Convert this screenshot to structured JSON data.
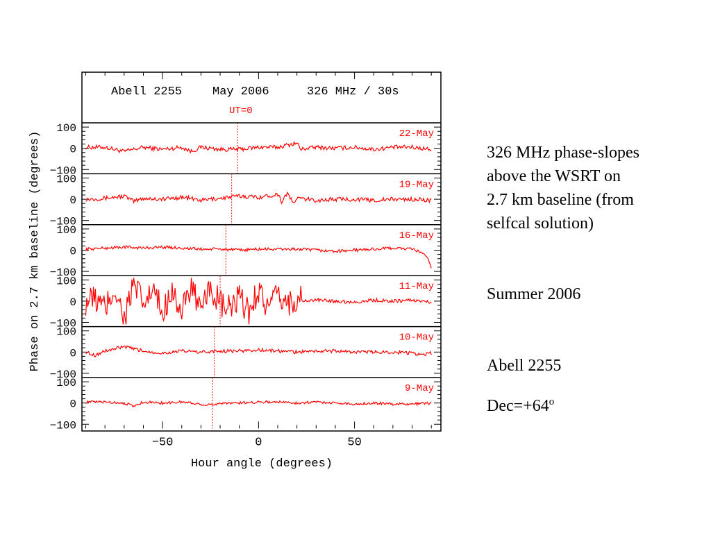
{
  "chart_data": {
    "type": "line",
    "header": {
      "source": "Abell 2255",
      "date": "May 2006",
      "setup": "326 MHz / 30s",
      "ut_label": "UT=0"
    },
    "xlabel": "Hour angle (degrees)",
    "ylabel": "Phase on 2.7 km baseline (degrees)",
    "xlim": [
      -92,
      95
    ],
    "ylim": [
      -120,
      120
    ],
    "x_ticks": [
      -50,
      0,
      50
    ],
    "y_ticks": [
      100,
      0,
      -100
    ],
    "series_color": "#ff0000",
    "panels": [
      {
        "name": "22-May",
        "ut0_hour_angle": -11,
        "amplitude": 10,
        "x": [
          -90,
          -80,
          -70,
          -60,
          -50,
          -40,
          -35,
          -30,
          -20,
          -10,
          0,
          10,
          15,
          20,
          22,
          25,
          30,
          40,
          50,
          60,
          70,
          80,
          90
        ],
        "y": [
          5,
          5,
          -15,
          5,
          -5,
          5,
          -15,
          5,
          -5,
          -5,
          5,
          5,
          15,
          25,
          -5,
          0,
          5,
          0,
          5,
          -5,
          5,
          5,
          -5
        ]
      },
      {
        "name": "19-May",
        "ut0_hour_angle": -14,
        "amplitude": 10,
        "x": [
          -90,
          -80,
          -70,
          -65,
          -60,
          -50,
          -40,
          -30,
          -20,
          -10,
          0,
          5,
          10,
          12,
          15,
          18,
          20,
          30,
          40,
          50,
          60,
          70,
          80,
          90
        ],
        "y": [
          0,
          5,
          15,
          -10,
          5,
          0,
          10,
          -5,
          5,
          15,
          10,
          15,
          25,
          -10,
          30,
          -20,
          5,
          -5,
          0,
          0,
          -5,
          0,
          0,
          -5
        ]
      },
      {
        "name": "16-May",
        "ut0_hour_angle": -17,
        "amplitude": 7,
        "x": [
          -90,
          -80,
          -70,
          -60,
          -50,
          -40,
          -30,
          -20,
          -10,
          0,
          10,
          20,
          30,
          40,
          50,
          60,
          70,
          80,
          85,
          88,
          90
        ],
        "y": [
          5,
          10,
          15,
          10,
          15,
          10,
          5,
          5,
          0,
          5,
          5,
          5,
          0,
          -5,
          0,
          5,
          10,
          5,
          -10,
          -40,
          -80
        ]
      },
      {
        "name": "11-May",
        "ut0_hour_angle": -20,
        "amplitude": 70,
        "x": [
          -90,
          -85,
          -80,
          -75,
          -70,
          -65,
          -60,
          -55,
          -50,
          -45,
          -40,
          -35,
          -30,
          -25,
          -20,
          -15,
          -10,
          -5,
          0,
          5,
          10,
          15,
          20,
          25,
          30,
          40,
          50,
          60,
          70,
          80,
          90
        ],
        "y": [
          0,
          10,
          -40,
          60,
          -80,
          80,
          -20,
          50,
          -60,
          70,
          -70,
          90,
          -70,
          70,
          -20,
          -40,
          10,
          -50,
          60,
          -40,
          20,
          -10,
          10,
          0,
          5,
          0,
          -5,
          5,
          0,
          5,
          -5
        ],
        "noise_range": [
          -90,
          22
        ]
      },
      {
        "name": "10-May",
        "ut0_hour_angle": -23,
        "amplitude": 8,
        "x": [
          -90,
          -85,
          -80,
          -75,
          -70,
          -60,
          -50,
          -40,
          -30,
          -20,
          -10,
          0,
          10,
          20,
          30,
          40,
          50,
          60,
          70,
          80,
          85,
          90
        ],
        "y": [
          0,
          -15,
          5,
          15,
          25,
          5,
          -5,
          5,
          0,
          5,
          5,
          10,
          5,
          0,
          5,
          5,
          0,
          0,
          0,
          -5,
          -15,
          -5
        ]
      },
      {
        "name": "9-May",
        "ut0_hour_angle": -24,
        "amplitude": 6,
        "x": [
          -90,
          -80,
          -70,
          -65,
          -60,
          -50,
          -40,
          -30,
          -25,
          -20,
          -10,
          0,
          10,
          20,
          30,
          40,
          50,
          60,
          70,
          80,
          90
        ],
        "y": [
          5,
          5,
          0,
          -15,
          5,
          0,
          5,
          -5,
          -10,
          0,
          0,
          5,
          5,
          0,
          5,
          0,
          -5,
          0,
          -5,
          -5,
          0
        ]
      }
    ]
  },
  "side_text": {
    "caption_line1": "326 MHz phase-slopes",
    "caption_line2": "above the WSRT  on",
    "caption_line3": "2.7 km baseline (from",
    "caption_line4": "selfcal solution)",
    "season": "Summer 2006",
    "object": "Abell 2255",
    "dec_prefix": "Dec=+64",
    "dec_sup": "o"
  }
}
